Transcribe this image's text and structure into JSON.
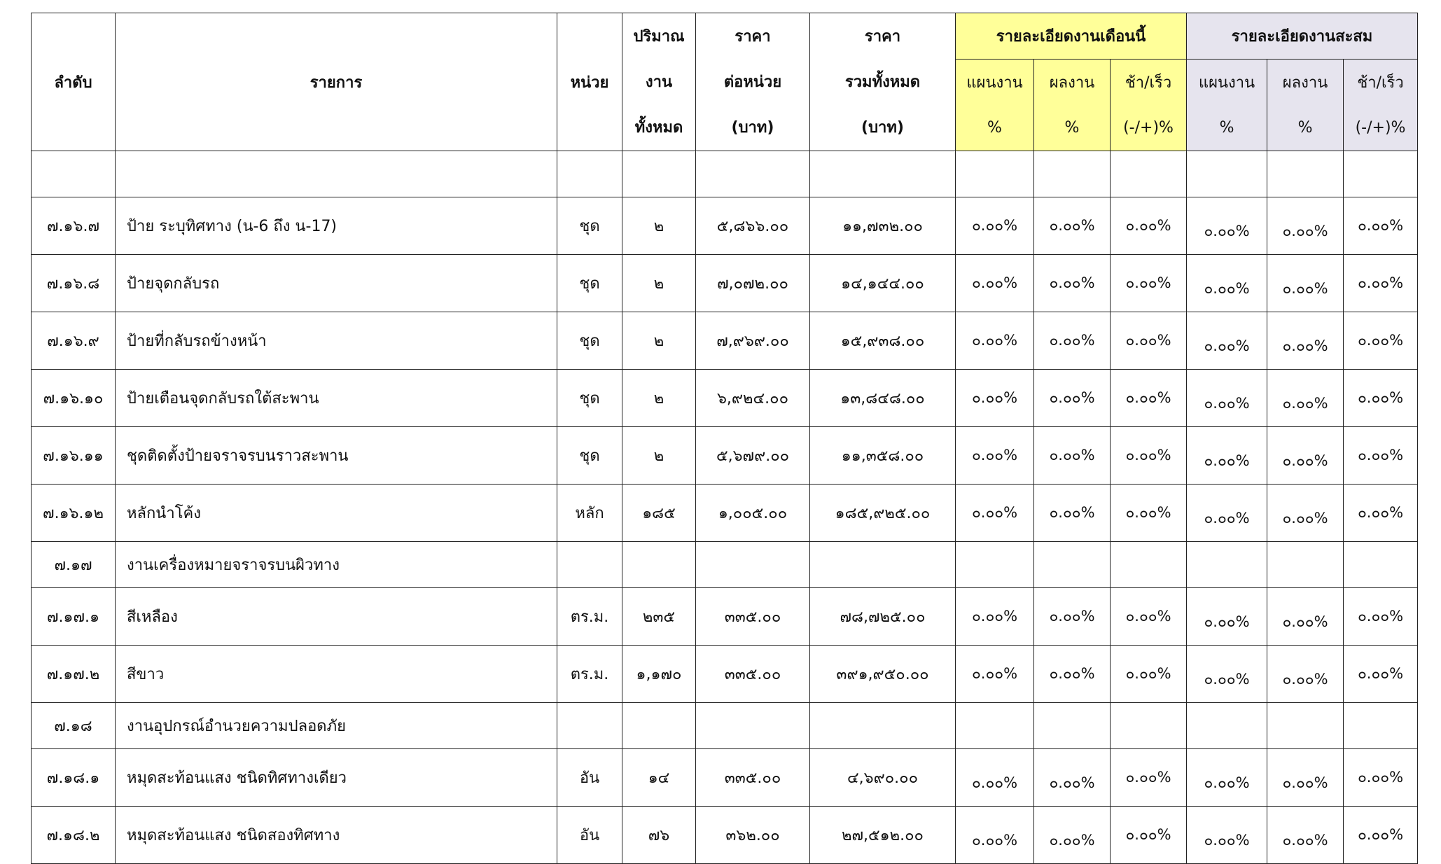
{
  "header": {
    "seq": "ลำดับ",
    "item": "รายการ",
    "unit": "หน่วย",
    "qty": [
      "ปริมาณ",
      "งาน",
      "ทั้งหมด"
    ],
    "unit_price": [
      "ราคา",
      "ต่อหน่วย",
      "(บาท)"
    ],
    "total_price": [
      "ราคา",
      "รวมทั้งหมด",
      "(บาท)"
    ],
    "this_month": "รายละเอียดงานเดือนนี้",
    "cumulative": "รายละเอียดงานสะสม",
    "sub": [
      "แผนงาน",
      "ผลงาน",
      "ช้า/เร็ว"
    ],
    "sub_units": [
      "%",
      "%",
      "(-/+)%"
    ]
  },
  "colors": {
    "this_month_bg": "#ffff99",
    "cumulative_bg": "#e6e4ee"
  },
  "rows": [
    {
      "seq": "",
      "item": "",
      "unit": "",
      "qty": "",
      "price": "",
      "total": "",
      "p": [
        "",
        "",
        "",
        "",
        "",
        ""
      ]
    },
    {
      "seq": "๗.๑๖.๗",
      "item": "ป้าย ระบุทิศทาง (น-6 ถึง น-17)",
      "unit": "ชุด",
      "qty": "๒",
      "price": "๕,๘๖๖.๐๐",
      "total": "๑๑,๗๓๒.๐๐",
      "p": [
        "๐.๐๐%",
        "๐.๐๐%",
        "๐.๐๐%",
        "๐.๐๐%",
        "๐.๐๐%",
        "๐.๐๐%"
      ]
    },
    {
      "seq": "๗.๑๖.๘",
      "item": "ป้ายจุดกลับรถ",
      "unit": "ชุด",
      "qty": "๒",
      "price": "๗,๐๗๒.๐๐",
      "total": "๑๔,๑๔๔.๐๐",
      "p": [
        "๐.๐๐%",
        "๐.๐๐%",
        "๐.๐๐%",
        "๐.๐๐%",
        "๐.๐๐%",
        "๐.๐๐%"
      ]
    },
    {
      "seq": "๗.๑๖.๙",
      "item": "ป้ายที่กลับรถข้างหน้า",
      "unit": "ชุด",
      "qty": "๒",
      "price": "๗,๙๖๙.๐๐",
      "total": "๑๕,๙๓๘.๐๐",
      "p": [
        "๐.๐๐%",
        "๐.๐๐%",
        "๐.๐๐%",
        "๐.๐๐%",
        "๐.๐๐%",
        "๐.๐๐%"
      ]
    },
    {
      "seq": "๗.๑๖.๑๐",
      "item": "ป้ายเตือนจุดกลับรถใต้สะพาน",
      "unit": "ชุด",
      "qty": "๒",
      "price": "๖,๙๒๔.๐๐",
      "total": "๑๓,๘๔๘.๐๐",
      "p": [
        "๐.๐๐%",
        "๐.๐๐%",
        "๐.๐๐%",
        "๐.๐๐%",
        "๐.๐๐%",
        "๐.๐๐%"
      ]
    },
    {
      "seq": "๗.๑๖.๑๑",
      "item": "ชุดติดตั้งป้ายจราจรบนราวสะพาน",
      "unit": "ชุด",
      "qty": "๒",
      "price": "๕,๖๗๙.๐๐",
      "total": "๑๑,๓๕๘.๐๐",
      "p": [
        "๐.๐๐%",
        "๐.๐๐%",
        "๐.๐๐%",
        "๐.๐๐%",
        "๐.๐๐%",
        "๐.๐๐%"
      ]
    },
    {
      "seq": "๗.๑๖.๑๒",
      "item": "หลักนำโค้ง",
      "unit": "หลัก",
      "qty": "๑๘๕",
      "price": "๑,๐๐๕.๐๐",
      "total": "๑๘๕,๙๒๕.๐๐",
      "p": [
        "๐.๐๐%",
        "๐.๐๐%",
        "๐.๐๐%",
        "๐.๐๐%",
        "๐.๐๐%",
        "๐.๐๐%"
      ]
    },
    {
      "seq": "๗.๑๗",
      "item": "งานเครื่องหมายจราจรบนผิวทาง",
      "unit": "",
      "qty": "",
      "price": "",
      "total": "",
      "p": [
        "",
        "",
        "",
        "",
        "",
        ""
      ]
    },
    {
      "seq": "๗.๑๗.๑",
      "item": "สีเหลือง",
      "unit": "ตร.ม.",
      "qty": "๒๓๕",
      "price": "๓๓๕.๐๐",
      "total": "๗๘,๗๒๕.๐๐",
      "p": [
        "๐.๐๐%",
        "๐.๐๐%",
        "๐.๐๐%",
        "๐.๐๐%",
        "๐.๐๐%",
        "๐.๐๐%"
      ]
    },
    {
      "seq": "๗.๑๗.๒",
      "item": "สีขาว",
      "unit": "ตร.ม.",
      "qty": "๑,๑๗๐",
      "price": "๓๓๕.๐๐",
      "total": "๓๙๑,๙๕๐.๐๐",
      "p": [
        "๐.๐๐%",
        "๐.๐๐%",
        "๐.๐๐%",
        "๐.๐๐%",
        "๐.๐๐%",
        "๐.๐๐%"
      ]
    },
    {
      "seq": "๗.๑๘",
      "item": "งานอุปกรณ์อำนวยความปลอดภัย",
      "unit": "",
      "qty": "",
      "price": "",
      "total": "",
      "p": [
        "",
        "",
        "",
        "",
        "",
        ""
      ]
    },
    {
      "seq": "๗.๑๘.๑",
      "item": "หมุดสะท้อนแสง ชนิดทิศทางเดียว",
      "unit": "อัน",
      "qty": "๑๔",
      "price": "๓๓๕.๐๐",
      "total": "๔,๖๙๐.๐๐",
      "p": [
        "๐.๐๐%",
        "๐.๐๐%",
        "๐.๐๐%",
        "๐.๐๐%",
        "๐.๐๐%",
        "๐.๐๐%"
      ]
    },
    {
      "seq": "๗.๑๘.๒",
      "item": "หมุดสะท้อนแสง ชนิดสองทิศทาง",
      "unit": "อัน",
      "qty": "๗๖",
      "price": "๓๖๒.๐๐",
      "total": "๒๗,๕๑๒.๐๐",
      "p": [
        "๐.๐๐%",
        "๐.๐๐%",
        "๐.๐๐%",
        "๐.๐๐%",
        "๐.๐๐%",
        "๐.๐๐%"
      ]
    }
  ]
}
